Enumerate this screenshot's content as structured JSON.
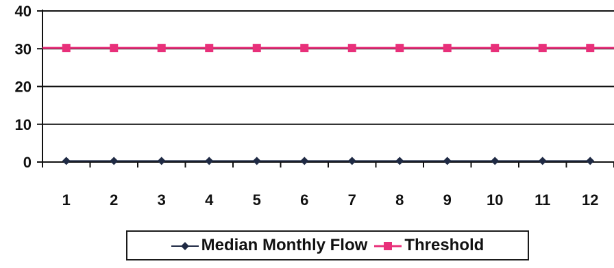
{
  "chart_data": {
    "type": "line",
    "title": "",
    "xlabel": "",
    "ylabel": "",
    "x": [
      1,
      2,
      3,
      4,
      5,
      6,
      7,
      8,
      9,
      10,
      11,
      12
    ],
    "ylim": [
      0,
      40
    ],
    "yticks": [
      0,
      10,
      20,
      30,
      40
    ],
    "grid": true,
    "legend_position": "bottom",
    "series": [
      {
        "name": "Median Monthly Flow",
        "values": [
          0.3,
          0.3,
          0.3,
          0.3,
          0.3,
          0.3,
          0.3,
          0.3,
          0.3,
          0.3,
          0.3,
          0.3
        ],
        "color": "#1f2a44",
        "marker": "diamond"
      },
      {
        "name": "Threshold",
        "values": [
          30.2,
          30.2,
          30.2,
          30.2,
          30.2,
          30.2,
          30.2,
          30.2,
          30.2,
          30.2,
          30.2,
          30.2
        ],
        "color": "#e8307a",
        "marker": "square"
      }
    ]
  }
}
